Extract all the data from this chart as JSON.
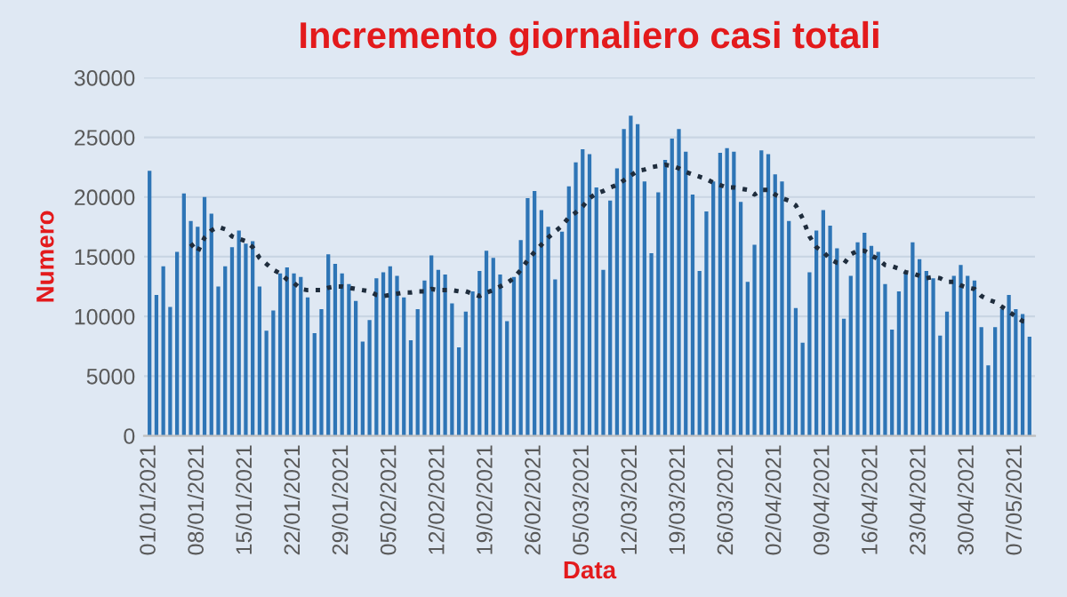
{
  "chart_data": {
    "type": "bar",
    "title": "Incremento giornaliero casi totali",
    "xlabel": "Data",
    "ylabel": "Numero",
    "categories": [
      "01/01/2021",
      null,
      null,
      null,
      null,
      null,
      null,
      "08/01/2021",
      null,
      null,
      null,
      null,
      null,
      null,
      "15/01/2021",
      null,
      null,
      null,
      null,
      null,
      null,
      "22/01/2021",
      null,
      null,
      null,
      null,
      null,
      null,
      "29/01/2021",
      null,
      null,
      null,
      null,
      null,
      null,
      "05/02/2021",
      null,
      null,
      null,
      null,
      null,
      null,
      "12/02/2021",
      null,
      null,
      null,
      null,
      null,
      null,
      "19/02/2021",
      null,
      null,
      null,
      null,
      null,
      null,
      "26/02/2021",
      null,
      null,
      null,
      null,
      null,
      null,
      "05/03/2021",
      null,
      null,
      null,
      null,
      null,
      null,
      "12/03/2021",
      null,
      null,
      null,
      null,
      null,
      null,
      "19/03/2021",
      null,
      null,
      null,
      null,
      null,
      null,
      "26/03/2021",
      null,
      null,
      null,
      null,
      null,
      null,
      "02/04/2021",
      null,
      null,
      null,
      null,
      null,
      null,
      "09/04/2021",
      null,
      null,
      null,
      null,
      null,
      null,
      "16/04/2021",
      null,
      null,
      null,
      null,
      null,
      null,
      "23/04/2021",
      null,
      null,
      null,
      null,
      null,
      null,
      "30/04/2021",
      null,
      null,
      null,
      null,
      null,
      null,
      "07/05/2021",
      null,
      null
    ],
    "series": [
      {
        "color": "#2e75b6",
        "values": [
          22200,
          11800,
          14200,
          10800,
          15400,
          20300,
          18000,
          17500,
          20000,
          18600,
          12500,
          14200,
          15800,
          17200,
          16100,
          16300,
          12500,
          8800,
          10500,
          13600,
          14100,
          13600,
          13300,
          11600,
          8600,
          10600,
          15200,
          14400,
          13600,
          12700,
          11300,
          7900,
          9700,
          13200,
          13700,
          14200,
          13400,
          11600,
          8000,
          10600,
          13000,
          15100,
          13900,
          13500,
          11100,
          7400,
          10400,
          12100,
          13800,
          15500,
          14900,
          13500,
          9600,
          13300,
          16400,
          19900,
          20500,
          18900,
          17500,
          13100,
          17100,
          20900,
          22900,
          24000,
          23600,
          20800,
          13900,
          19700,
          22400,
          25700,
          26800,
          26100,
          21300,
          15300,
          20400,
          23100,
          24900,
          25700,
          23800,
          20200,
          13800,
          18800,
          21300,
          23700,
          24100,
          23800,
          19600,
          12900,
          16000,
          23900,
          23600,
          21900,
          21300,
          18000,
          10700,
          7800,
          13700,
          17200,
          18900,
          17600,
          15700,
          9800,
          13400,
          16200,
          17000,
          15900,
          15400,
          12700,
          8900,
          12100,
          13800,
          16200,
          14800,
          13800,
          13200,
          8400,
          10400,
          13400,
          14300,
          13400,
          13000,
          9100,
          5900,
          9100,
          10600,
          11800,
          10600,
          10200,
          8300
        ]
      },
      {
        "type": "line",
        "color": "#1f2d3d",
        "line_style": "dotted",
        "marker": "none",
        "values": [
          null,
          null,
          null,
          null,
          null,
          null,
          16100,
          15400,
          16600,
          17200,
          17500,
          17300,
          16700,
          16500,
          16300,
          15800,
          14900,
          14400,
          13900,
          13600,
          13100,
          12800,
          12300,
          12200,
          12200,
          12200,
          12400,
          12500,
          12500,
          12400,
          12300,
          12200,
          12100,
          11800,
          11700,
          11800,
          11900,
          12000,
          12000,
          12100,
          12100,
          12300,
          12200,
          12200,
          12200,
          12100,
          12100,
          11900,
          11700,
          12000,
          12200,
          12500,
          12800,
          13200,
          13900,
          14700,
          15400,
          16000,
          16600,
          17100,
          17600,
          18300,
          18700,
          19200,
          19900,
          20300,
          20500,
          20800,
          21000,
          21400,
          21800,
          22200,
          22300,
          22500,
          22600,
          22700,
          22600,
          22400,
          22100,
          21900,
          21700,
          21500,
          21200,
          21000,
          20800,
          20800,
          20700,
          20600,
          20200,
          20600,
          20600,
          20200,
          19900,
          19700,
          19300,
          18200,
          16700,
          15800,
          15400,
          14800,
          14500,
          14400,
          15200,
          15500,
          15500,
          15100,
          14800,
          14300,
          14200,
          14000,
          13700,
          13600,
          13400,
          13200,
          13300,
          13200,
          12900,
          12900,
          12600,
          12400,
          12300,
          11700,
          11400,
          11200,
          10800,
          10400,
          10000,
          9600,
          9500
        ]
      }
    ],
    "ylim": [
      0,
      30000
    ],
    "yticks": [
      0,
      5000,
      10000,
      15000,
      20000,
      25000,
      30000
    ],
    "grid": "y",
    "legend": false
  }
}
